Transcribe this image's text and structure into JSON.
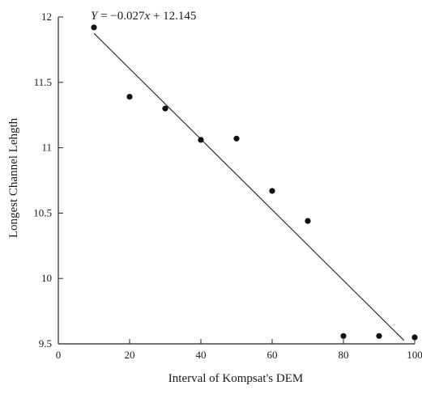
{
  "chart_data": {
    "type": "scatter",
    "title": "",
    "equation": "Y = −0.027x + 12.145",
    "xlabel": "Interval of Kompsat's DEM",
    "ylabel": "Longest Channel Lehgth",
    "xlim": [
      0,
      100
    ],
    "ylim": [
      9.5,
      12
    ],
    "x_ticks": [
      0,
      20,
      40,
      60,
      80,
      100
    ],
    "y_ticks": [
      9.5,
      10,
      10.5,
      11,
      11.5,
      12
    ],
    "x_tick_labels": [
      "0",
      "20",
      "40",
      "60",
      "80",
      "100"
    ],
    "y_tick_labels": [
      "9.5",
      "10",
      "10.5",
      "11",
      "11.5",
      "12"
    ],
    "grid": false,
    "points": [
      {
        "x": 10,
        "y": 11.92
      },
      {
        "x": 20,
        "y": 11.39
      },
      {
        "x": 30,
        "y": 11.3
      },
      {
        "x": 40,
        "y": 11.06
      },
      {
        "x": 50,
        "y": 11.07
      },
      {
        "x": 60,
        "y": 10.67
      },
      {
        "x": 70,
        "y": 10.44
      },
      {
        "x": 80,
        "y": 9.56
      },
      {
        "x": 90,
        "y": 9.56
      },
      {
        "x": 100,
        "y": 9.55
      }
    ],
    "trendline": {
      "slope": -0.027,
      "intercept": 12.145,
      "x_start": 10,
      "x_end": 97
    },
    "colors": {
      "marker": "#111111",
      "line": "#222222",
      "axis": "#222222"
    }
  }
}
